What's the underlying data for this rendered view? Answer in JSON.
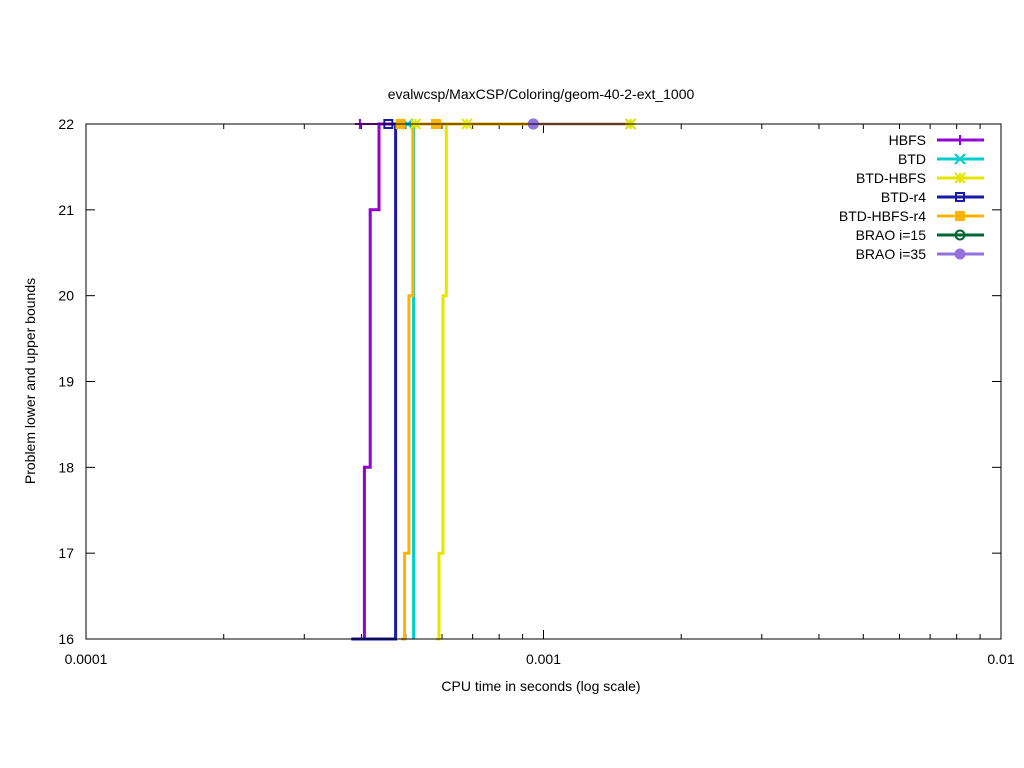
{
  "chart_data": {
    "type": "line",
    "title": "evalwcsp/MaxCSP/Coloring/geom-40-2-ext_1000",
    "xlabel": "CPU time in seconds (log scale)",
    "ylabel": "Problem lower and upper bounds",
    "x_scale": "log",
    "xlim": [
      0.0001,
      0.01
    ],
    "ylim": [
      16,
      22
    ],
    "x_ticks": [
      {
        "value": 0.0001,
        "label": "0.0001"
      },
      {
        "value": 0.001,
        "label": "0.001"
      },
      {
        "value": 0.01,
        "label": "0.01"
      }
    ],
    "y_ticks": [
      {
        "value": 16,
        "label": "16"
      },
      {
        "value": 17,
        "label": "17"
      },
      {
        "value": 18,
        "label": "18"
      },
      {
        "value": 19,
        "label": "19"
      },
      {
        "value": 20,
        "label": "20"
      },
      {
        "value": 21,
        "label": "21"
      },
      {
        "value": 22,
        "label": "22"
      }
    ],
    "grid": false,
    "legend_position": "top-right",
    "series": [
      {
        "name": "HBFS",
        "color": "#9400d3",
        "marker": "plus",
        "lower": [
          [
            0.000397,
            16
          ],
          [
            0.000406,
            18
          ],
          [
            0.000418,
            21
          ],
          [
            0.000437,
            22
          ],
          [
            0.00155,
            22
          ]
        ],
        "upper": [
          [
            0.000397,
            22
          ],
          [
            0.00155,
            22
          ]
        ]
      },
      {
        "name": "BTD",
        "color": "#00cdcd",
        "marker": "cross",
        "lower": [
          [
            0.00052,
            16
          ],
          [
            0.00052,
            22
          ],
          [
            0.00155,
            22
          ]
        ],
        "upper": [
          [
            0.000505,
            22
          ],
          [
            0.00155,
            22
          ]
        ]
      },
      {
        "name": "BTD-HBFS",
        "color": "#e5e500",
        "marker": "star",
        "lower": [
          [
            0.000583,
            16
          ],
          [
            0.000591,
            17
          ],
          [
            0.000603,
            20
          ],
          [
            0.000613,
            22
          ],
          [
            0.00155,
            22
          ]
        ],
        "upper": [
          [
            0.000525,
            22
          ],
          [
            0.00068,
            22
          ],
          [
            0.00155,
            22
          ]
        ]
      },
      {
        "name": "BTD-r4",
        "color": "#1a1aa8",
        "marker": "square-open",
        "lower": [
          [
            0.00038,
            16
          ],
          [
            0.000475,
            16
          ],
          [
            0.000475,
            22
          ],
          [
            0.00155,
            22
          ]
        ],
        "upper": [
          [
            0.000458,
            22
          ],
          [
            0.00155,
            22
          ]
        ]
      },
      {
        "name": "BTD-HBFS-r4",
        "color": "#ffb300",
        "marker": "square-filled",
        "lower": [
          [
            0.000488,
            16
          ],
          [
            0.000497,
            17
          ],
          [
            0.000508,
            20
          ],
          [
            0.000518,
            22
          ],
          [
            0.00155,
            22
          ]
        ],
        "upper": [
          [
            0.000487,
            22
          ],
          [
            0.000582,
            22
          ],
          [
            0.00155,
            22
          ]
        ]
      },
      {
        "name": "BRAO i=15",
        "color": "#006633",
        "marker": "circle-open",
        "lower": [],
        "upper": [
          [
            0.00095,
            22
          ]
        ]
      },
      {
        "name": "BRAO i=35",
        "color": "#9370db",
        "marker": "circle-filled",
        "lower": [],
        "upper": [
          [
            0.00095,
            22
          ],
          [
            0.00155,
            22
          ]
        ]
      }
    ]
  }
}
